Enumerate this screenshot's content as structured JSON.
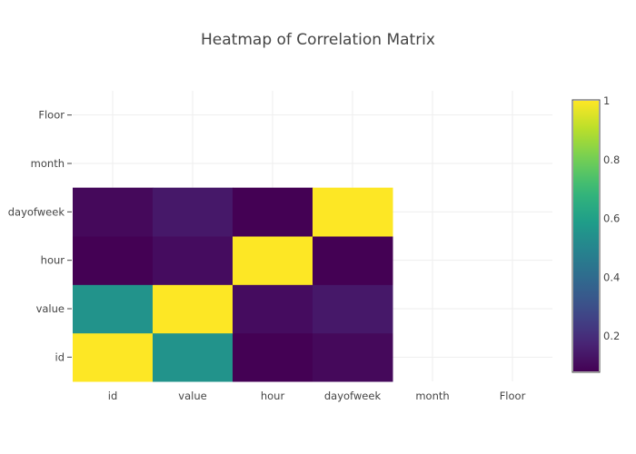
{
  "chart_data": {
    "type": "heatmap",
    "title": "Heatmap of Correlation Matrix",
    "x_categories": [
      "id",
      "value",
      "hour",
      "dayofweek",
      "month",
      "Floor"
    ],
    "y_categories": [
      "id",
      "value",
      "hour",
      "dayofweek",
      "month",
      "Floor"
    ],
    "z": [
      [
        1.0,
        0.55,
        0.08,
        0.1,
        null,
        null
      ],
      [
        0.55,
        1.0,
        0.11,
        0.14,
        null,
        null
      ],
      [
        0.08,
        0.11,
        1.0,
        0.08,
        null,
        null
      ],
      [
        0.1,
        0.14,
        0.08,
        1.0,
        null,
        null
      ],
      [
        null,
        null,
        null,
        null,
        null,
        null
      ],
      [
        null,
        null,
        null,
        null,
        null,
        null
      ]
    ],
    "colorscale": "Viridis",
    "zmin": 0.08,
    "zmax": 1.0,
    "colorbar_ticks": [
      0.2,
      0.4,
      0.6,
      0.8,
      1
    ],
    "colorbar_tick_labels": [
      "0.2",
      "0.4",
      "0.6",
      "0.8",
      "1"
    ],
    "grid": true
  }
}
